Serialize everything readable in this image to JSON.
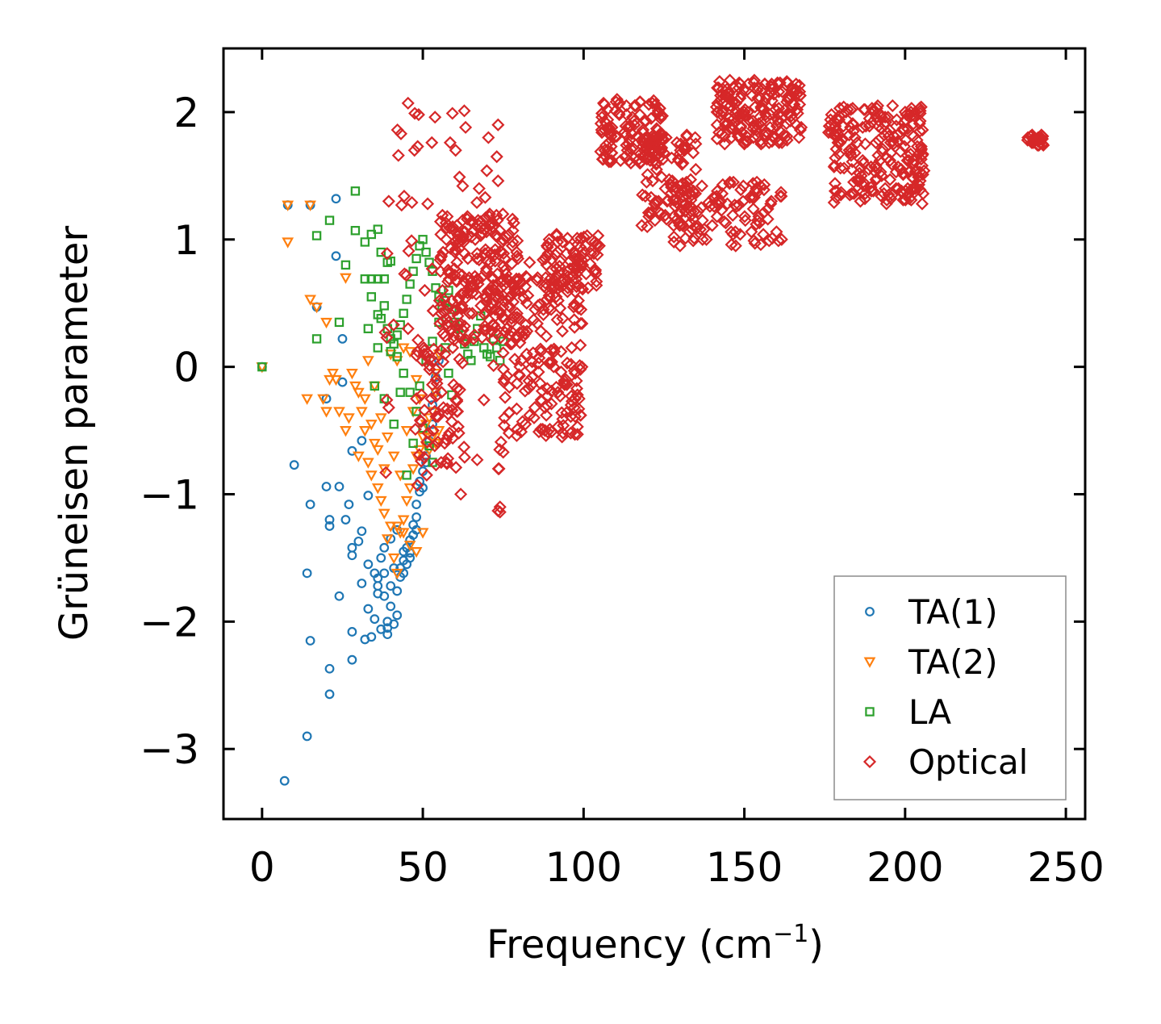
{
  "chart_data": {
    "type": "scatter",
    "title": "",
    "xlabel": "Frequency (cm",
    "xlabel_sup": "−1",
    "xlabel_close": ")",
    "ylabel": "Grüneisen parameter",
    "xlim": [
      -12,
      256
    ],
    "ylim": [
      -3.55,
      2.5
    ],
    "xticks": [
      0,
      50,
      100,
      150,
      200,
      250
    ],
    "xtick_labels": [
      "0",
      "50",
      "100",
      "150",
      "200",
      "250"
    ],
    "yticks": [
      -3,
      -2,
      -1,
      0,
      1,
      2
    ],
    "ytick_labels": [
      "−3",
      "−2",
      "−1",
      "0",
      "1",
      "2"
    ],
    "grid": false,
    "legend_position": "bottom-right",
    "series": [
      {
        "name": "TA(1)",
        "marker": "circle",
        "color": "#1f77b4",
        "points": [
          [
            0,
            0
          ],
          [
            7,
            -3.25
          ],
          [
            14,
            -2.9
          ],
          [
            21,
            -2.57
          ],
          [
            15,
            -2.15
          ],
          [
            21,
            -2.37
          ],
          [
            28,
            -2.3
          ],
          [
            28,
            -2.08
          ],
          [
            24,
            -1.8
          ],
          [
            14,
            -1.62
          ],
          [
            10,
            -0.77
          ],
          [
            20,
            -0.94
          ],
          [
            24,
            -0.94
          ],
          [
            15,
            -1.08
          ],
          [
            21,
            -1.2
          ],
          [
            21,
            -1.25
          ],
          [
            27,
            -1.08
          ],
          [
            26,
            -1.2
          ],
          [
            28,
            -1.42
          ],
          [
            28,
            -1.48
          ],
          [
            30,
            -1.37
          ],
          [
            31,
            -1.29
          ],
          [
            33,
            -1.01
          ],
          [
            31,
            -0.58
          ],
          [
            28,
            -0.66
          ],
          [
            20,
            -0.25
          ],
          [
            25,
            -0.12
          ],
          [
            25,
            0.22
          ],
          [
            17,
            0.47
          ],
          [
            23,
            0.87
          ],
          [
            8,
            1.27
          ],
          [
            15,
            1.27
          ],
          [
            23,
            1.32
          ],
          [
            31,
            -1.7
          ],
          [
            33,
            -1.55
          ],
          [
            33,
            -1.9
          ],
          [
            32,
            -2.14
          ],
          [
            35,
            -1.98
          ],
          [
            36,
            -1.78
          ],
          [
            36,
            -1.66
          ],
          [
            37,
            -1.5
          ],
          [
            38,
            -1.62
          ],
          [
            38,
            -1.8
          ],
          [
            39,
            -2.0
          ],
          [
            40,
            -1.88
          ],
          [
            40,
            -1.72
          ],
          [
            41,
            -1.58
          ],
          [
            42,
            -1.76
          ],
          [
            43,
            -1.65
          ],
          [
            44,
            -1.52
          ],
          [
            44,
            -1.62
          ],
          [
            45,
            -1.42
          ],
          [
            46,
            -1.36
          ],
          [
            46,
            -1.5
          ],
          [
            47,
            -1.24
          ],
          [
            47,
            -1.32
          ],
          [
            48,
            -1.18
          ],
          [
            48,
            -1.08
          ],
          [
            49,
            -0.98
          ],
          [
            49,
            -0.9
          ],
          [
            50,
            -0.82
          ],
          [
            51,
            -0.7
          ],
          [
            51,
            -0.75
          ],
          [
            52,
            -0.58
          ],
          [
            53,
            -0.45
          ],
          [
            53,
            -0.3
          ],
          [
            54,
            -0.2
          ],
          [
            54,
            -0.08
          ],
          [
            55,
            0.05
          ],
          [
            39,
            -2.05
          ],
          [
            41,
            -2.02
          ],
          [
            42,
            -1.95
          ],
          [
            35,
            -1.62
          ],
          [
            36,
            -1.72
          ],
          [
            38,
            -1.42
          ],
          [
            40,
            -1.35
          ],
          [
            42,
            -1.28
          ],
          [
            44,
            -1.45
          ],
          [
            43,
            -1.58
          ],
          [
            39,
            -2.1
          ],
          [
            37,
            -2.06
          ],
          [
            34,
            -2.12
          ],
          [
            45,
            -1.55
          ],
          [
            46,
            -1.46
          ],
          [
            48,
            -1.28
          ],
          [
            50,
            -0.95
          ]
        ]
      },
      {
        "name": "TA(2)",
        "marker": "triangle-down",
        "color": "#ff7f0e",
        "points": [
          [
            0,
            0
          ],
          [
            8,
            0.98
          ],
          [
            8,
            1.27
          ],
          [
            15,
            1.27
          ],
          [
            15,
            0.53
          ],
          [
            17,
            0.47
          ],
          [
            20,
            0.35
          ],
          [
            14,
            -0.25
          ],
          [
            20,
            -0.35
          ],
          [
            19,
            -0.25
          ],
          [
            21,
            -0.1
          ],
          [
            26,
            0.7
          ],
          [
            22,
            -0.05
          ],
          [
            28,
            -0.05
          ],
          [
            29,
            -0.15
          ],
          [
            31,
            -0.35
          ],
          [
            32,
            -0.5
          ],
          [
            27,
            -0.4
          ],
          [
            30,
            -0.7
          ],
          [
            33,
            -0.75
          ],
          [
            34,
            -0.85
          ],
          [
            35,
            -0.6
          ],
          [
            36,
            -0.95
          ],
          [
            37,
            -1.05
          ],
          [
            38,
            -1.15
          ],
          [
            39,
            -1.35
          ],
          [
            40,
            -1.25
          ],
          [
            41,
            -1.5
          ],
          [
            42,
            -1.62
          ],
          [
            43,
            -1.3
          ],
          [
            44,
            -1.2
          ],
          [
            45,
            -1.05
          ],
          [
            46,
            -0.95
          ],
          [
            47,
            -0.8
          ],
          [
            48,
            -0.7
          ],
          [
            49,
            -0.65
          ],
          [
            50,
            -0.55
          ],
          [
            51,
            -0.45
          ],
          [
            52,
            -0.4
          ],
          [
            53,
            -0.35
          ],
          [
            54,
            -0.2
          ],
          [
            54,
            -0.05
          ],
          [
            55,
            0.1
          ],
          [
            55,
            -0.5
          ],
          [
            54,
            -0.6
          ],
          [
            53,
            -0.55
          ],
          [
            52,
            -0.65
          ],
          [
            51,
            -0.62
          ],
          [
            40,
            0.1
          ],
          [
            42,
            0.05
          ],
          [
            44,
            0.15
          ],
          [
            46,
            0.12
          ],
          [
            48,
            -0.1
          ],
          [
            37,
            -0.4
          ],
          [
            39,
            -0.55
          ],
          [
            41,
            -0.7
          ],
          [
            43,
            -0.85
          ],
          [
            45,
            -0.5
          ],
          [
            47,
            -0.35
          ],
          [
            49,
            -0.25
          ],
          [
            50,
            -1.3
          ],
          [
            48,
            -1.45
          ],
          [
            46,
            -1.4
          ],
          [
            44,
            -1.3
          ],
          [
            42,
            -1.25
          ],
          [
            38,
            -0.8
          ],
          [
            36,
            -0.65
          ],
          [
            34,
            -0.45
          ],
          [
            32,
            -0.25
          ],
          [
            30,
            -0.2
          ],
          [
            26,
            -0.5
          ],
          [
            24,
            -0.35
          ],
          [
            23,
            -0.1
          ],
          [
            33,
            0.05
          ],
          [
            35,
            -0.15
          ]
        ]
      },
      {
        "name": "LA",
        "marker": "square",
        "color": "#2ca02c",
        "points": [
          [
            0,
            0
          ],
          [
            17,
            1.03
          ],
          [
            21,
            1.15
          ],
          [
            26,
            0.8
          ],
          [
            29,
            1.38
          ],
          [
            29,
            1.07
          ],
          [
            32,
            0.98
          ],
          [
            34,
            1.04
          ],
          [
            36,
            1.08
          ],
          [
            37,
            0.9
          ],
          [
            39,
            0.82
          ],
          [
            32,
            0.69
          ],
          [
            34,
            0.69
          ],
          [
            36,
            0.69
          ],
          [
            38,
            0.69
          ],
          [
            40,
            0.83
          ],
          [
            34,
            0.55
          ],
          [
            36,
            0.41
          ],
          [
            37,
            0.38
          ],
          [
            38,
            0.48
          ],
          [
            39,
            0.3
          ],
          [
            40,
            0.22
          ],
          [
            41,
            0.18
          ],
          [
            42,
            0.25
          ],
          [
            43,
            0.33
          ],
          [
            44,
            0.42
          ],
          [
            45,
            0.53
          ],
          [
            46,
            0.65
          ],
          [
            47,
            0.75
          ],
          [
            48,
            0.85
          ],
          [
            49,
            0.95
          ],
          [
            50,
            1.0
          ],
          [
            51,
            0.9
          ],
          [
            52,
            0.82
          ],
          [
            53,
            0.75
          ],
          [
            54,
            0.62
          ],
          [
            55,
            0.55
          ],
          [
            56,
            0.48
          ],
          [
            57,
            0.52
          ],
          [
            58,
            0.6
          ],
          [
            59,
            0.45
          ],
          [
            60,
            0.35
          ],
          [
            61,
            0.3
          ],
          [
            62,
            0.25
          ],
          [
            63,
            0.18
          ],
          [
            64,
            0.1
          ],
          [
            65,
            0.05
          ],
          [
            66,
            0.2
          ],
          [
            67,
            0.3
          ],
          [
            68,
            0.4
          ],
          [
            69,
            0.15
          ],
          [
            70,
            0.1
          ],
          [
            71,
            0.08
          ],
          [
            72,
            0.22
          ],
          [
            73,
            0.15
          ],
          [
            74,
            0.05
          ],
          [
            75,
            0.2
          ],
          [
            17,
            0.22
          ],
          [
            24,
            0.35
          ],
          [
            33,
            0.3
          ],
          [
            36,
            0.15
          ],
          [
            40,
            0.12
          ],
          [
            42,
            0.08
          ],
          [
            44,
            -0.05
          ],
          [
            46,
            -0.2
          ],
          [
            48,
            -0.35
          ],
          [
            50,
            -0.48
          ],
          [
            52,
            -0.62
          ],
          [
            53,
            -0.75
          ],
          [
            45,
            -0.85
          ],
          [
            47,
            -0.6
          ],
          [
            49,
            -0.15
          ],
          [
            51,
            0.05
          ],
          [
            53,
            0.2
          ],
          [
            55,
            0.35
          ],
          [
            57,
            0.15
          ],
          [
            58,
            -0.05
          ],
          [
            59,
            -0.22
          ],
          [
            35,
            -0.15
          ],
          [
            38,
            -0.25
          ],
          [
            41,
            -0.45
          ],
          [
            43,
            -0.2
          ]
        ]
      },
      {
        "name": "Optical",
        "marker": "diamond",
        "color": "#d62728",
        "points": "generated"
      }
    ],
    "optical_clusters": [
      {
        "x_range": [
          55,
          80
        ],
        "y_range": [
          0.2,
          1.2
        ],
        "count": 220
      },
      {
        "x_range": [
          75,
          100
        ],
        "y_range": [
          -0.55,
          0.85
        ],
        "count": 200
      },
      {
        "x_range": [
          88,
          105
        ],
        "y_range": [
          0.6,
          1.05
        ],
        "count": 80
      },
      {
        "x_range": [
          48,
          62
        ],
        "y_range": [
          -0.85,
          0.3
        ],
        "count": 60
      },
      {
        "x_range": [
          105,
          125
        ],
        "y_range": [
          1.6,
          2.1
        ],
        "count": 130
      },
      {
        "x_range": [
          118,
          135
        ],
        "y_range": [
          1.1,
          1.9
        ],
        "count": 100
      },
      {
        "x_range": [
          141,
          168
        ],
        "y_range": [
          1.75,
          2.25
        ],
        "count": 180
      },
      {
        "x_range": [
          128,
          162
        ],
        "y_range": [
          0.95,
          1.45
        ],
        "count": 110
      },
      {
        "x_range": [
          176,
          206
        ],
        "y_range": [
          1.28,
          2.05
        ],
        "count": 220
      },
      {
        "x_range": [
          238,
          243
        ],
        "y_range": [
          1.74,
          1.82
        ],
        "count": 30
      },
      {
        "x_range": [
          38,
          75
        ],
        "y_range": [
          -1.15,
          2.1
        ],
        "count": 90
      }
    ]
  }
}
